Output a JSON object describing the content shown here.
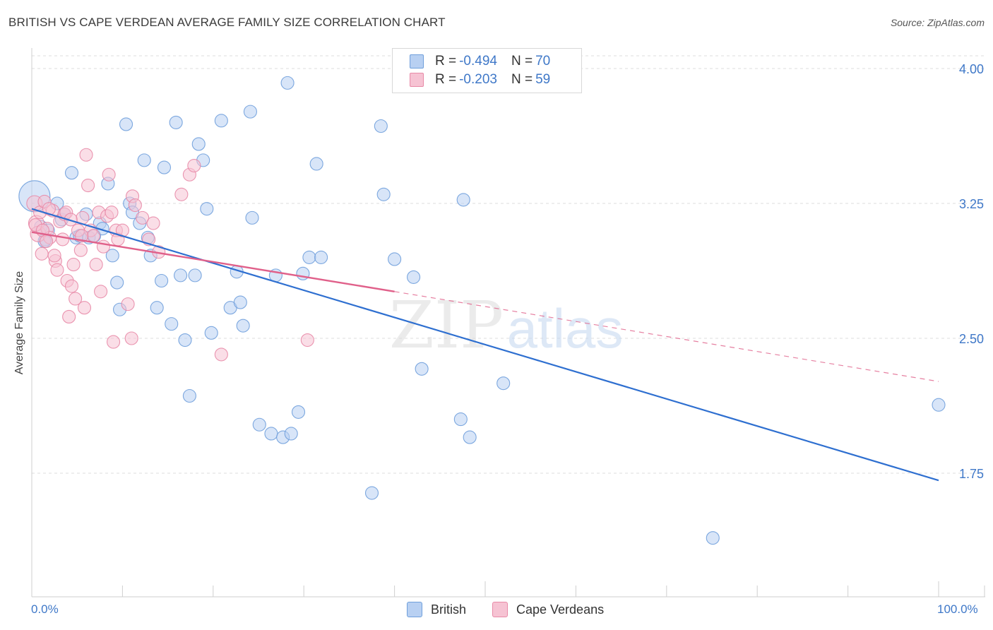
{
  "header": {
    "title": "BRITISH VS CAPE VERDEAN AVERAGE FAMILY SIZE CORRELATION CHART",
    "source": "Source: ZipAtlas.com"
  },
  "watermark": {
    "zip": "ZIP",
    "atlas": "atlas"
  },
  "colors": {
    "british_fill": "#b8d0f2",
    "british_stroke": "#6f9fdb",
    "british_line": "#2e6fd0",
    "cape_fill": "#f6c3d3",
    "cape_stroke": "#e88aa7",
    "cape_line": "#e0608a",
    "tick_text": "#3f78c8",
    "grid": "#dcdcdc"
  },
  "legend_top": {
    "rows": [
      {
        "r_label": "R = ",
        "r_value": "-0.494",
        "n_label": "N = ",
        "n_value": "70"
      },
      {
        "r_label": "R = ",
        "r_value": "-0.203",
        "n_label": "N = ",
        "n_value": "59"
      }
    ]
  },
  "legend_bottom": {
    "items": [
      "British",
      "Cape Verdeans"
    ]
  },
  "chart_data": {
    "type": "scatter",
    "title": "BRITISH VS CAPE VERDEAN AVERAGE FAMILY SIZE CORRELATION CHART",
    "xlabel": "",
    "ylabel": "Average Family Size",
    "xlim": [
      0,
      100
    ],
    "ylim": [
      1.0,
      4.12
    ],
    "x_tick_labels": [
      "0.0%",
      "100.0%"
    ],
    "y_ticks": [
      1.75,
      2.5,
      3.25,
      4.0
    ],
    "y_tick_labels": [
      "1.75",
      "2.50",
      "3.25",
      "4.00"
    ],
    "grid": true,
    "legend_position": "top-center",
    "series": [
      {
        "name": "British",
        "r": -0.494,
        "n": 70,
        "trend": {
          "x0": 0,
          "y0": 3.22,
          "x1": 100,
          "y1": 1.71
        },
        "points": [
          [
            0.3,
            3.29,
            22
          ],
          [
            1.0,
            3.12,
            9
          ],
          [
            1.5,
            3.05,
            9
          ],
          [
            1.8,
            3.1,
            9
          ],
          [
            2.8,
            3.25,
            9
          ],
          [
            3.3,
            3.16,
            9
          ],
          [
            3.6,
            3.19,
            9
          ],
          [
            4.4,
            3.42,
            9
          ],
          [
            4.9,
            3.06,
            9
          ],
          [
            5.3,
            3.07,
            9
          ],
          [
            6.0,
            3.19,
            9
          ],
          [
            6.3,
            3.06,
            9
          ],
          [
            6.9,
            3.07,
            9
          ],
          [
            7.5,
            3.14,
            9
          ],
          [
            7.8,
            3.11,
            9
          ],
          [
            8.4,
            3.36,
            9
          ],
          [
            8.9,
            2.96,
            9
          ],
          [
            9.4,
            2.81,
            9
          ],
          [
            9.7,
            2.66,
            9
          ],
          [
            10.4,
            3.69,
            9
          ],
          [
            10.8,
            3.25,
            9
          ],
          [
            11.1,
            3.2,
            9
          ],
          [
            11.9,
            3.14,
            9
          ],
          [
            12.4,
            3.49,
            9
          ],
          [
            12.8,
            3.06,
            9
          ],
          [
            13.1,
            2.96,
            9
          ],
          [
            13.8,
            2.67,
            9
          ],
          [
            14.3,
            2.82,
            9
          ],
          [
            14.6,
            3.45,
            9
          ],
          [
            15.4,
            2.58,
            9
          ],
          [
            15.9,
            3.7,
            9
          ],
          [
            16.4,
            2.85,
            9
          ],
          [
            16.9,
            2.49,
            9
          ],
          [
            17.4,
            2.18,
            9
          ],
          [
            18.0,
            2.85,
            9
          ],
          [
            18.4,
            3.58,
            9
          ],
          [
            18.9,
            3.49,
            9
          ],
          [
            19.3,
            3.22,
            9
          ],
          [
            19.8,
            2.53,
            9
          ],
          [
            20.9,
            3.71,
            9
          ],
          [
            21.9,
            2.67,
            9
          ],
          [
            22.6,
            2.87,
            9
          ],
          [
            23.0,
            2.7,
            9
          ],
          [
            23.3,
            2.57,
            9
          ],
          [
            24.1,
            3.76,
            9
          ],
          [
            24.3,
            3.17,
            9
          ],
          [
            25.1,
            2.02,
            9
          ],
          [
            26.4,
            1.97,
            9
          ],
          [
            26.9,
            2.85,
            9
          ],
          [
            27.7,
            1.95,
            9
          ],
          [
            28.2,
            3.92,
            9
          ],
          [
            28.6,
            1.97,
            9
          ],
          [
            29.4,
            2.09,
            9
          ],
          [
            29.9,
            2.86,
            9
          ],
          [
            30.6,
            2.95,
            9
          ],
          [
            31.4,
            3.47,
            9
          ],
          [
            31.9,
            2.95,
            9
          ],
          [
            37.5,
            1.64,
            9
          ],
          [
            38.5,
            3.68,
            9
          ],
          [
            38.8,
            3.3,
            9
          ],
          [
            40.0,
            2.94,
            9
          ],
          [
            42.1,
            2.84,
            9
          ],
          [
            43.0,
            2.33,
            9
          ],
          [
            47.3,
            2.05,
            9
          ],
          [
            47.6,
            3.27,
            9
          ],
          [
            48.3,
            1.95,
            9
          ],
          [
            52.0,
            2.25,
            9
          ],
          [
            75.1,
            1.39,
            9
          ],
          [
            100.0,
            2.13,
            9
          ],
          [
            1.4,
            3.04,
            9
          ]
        ]
      },
      {
        "name": "Cape Verdeans",
        "r": -0.203,
        "n": 59,
        "trend": {
          "x0": 0,
          "y0": 3.09,
          "x1": 40,
          "y1": 2.76
        },
        "trend_extension": {
          "x0": 40,
          "y0": 2.76,
          "x1": 100,
          "y1": 2.26
        },
        "points": [
          [
            0.3,
            3.25,
            11
          ],
          [
            0.5,
            3.14,
            11
          ],
          [
            0.7,
            3.08,
            11
          ],
          [
            0.9,
            3.2,
            9
          ],
          [
            1.1,
            2.97,
            9
          ],
          [
            1.4,
            3.26,
            9
          ],
          [
            1.7,
            3.11,
            9
          ],
          [
            2.0,
            3.06,
            9
          ],
          [
            2.3,
            3.21,
            9
          ],
          [
            2.6,
            2.93,
            9
          ],
          [
            2.8,
            2.88,
            9
          ],
          [
            3.1,
            3.15,
            9
          ],
          [
            3.4,
            3.05,
            9
          ],
          [
            3.6,
            3.19,
            9
          ],
          [
            3.9,
            2.82,
            9
          ],
          [
            4.1,
            2.62,
            9
          ],
          [
            4.4,
            2.79,
            9
          ],
          [
            4.6,
            2.91,
            9
          ],
          [
            4.8,
            2.72,
            9
          ],
          [
            5.1,
            3.1,
            9
          ],
          [
            5.4,
            2.99,
            9
          ],
          [
            5.6,
            3.17,
            9
          ],
          [
            5.8,
            2.67,
            9
          ],
          [
            6.0,
            3.52,
            9
          ],
          [
            6.2,
            3.35,
            9
          ],
          [
            6.5,
            3.1,
            9
          ],
          [
            6.8,
            3.07,
            9
          ],
          [
            7.1,
            2.91,
            9
          ],
          [
            7.4,
            3.2,
            9
          ],
          [
            7.6,
            2.76,
            9
          ],
          [
            7.9,
            3.01,
            9
          ],
          [
            8.3,
            3.18,
            9
          ],
          [
            8.5,
            3.41,
            9
          ],
          [
            8.8,
            3.2,
            9
          ],
          [
            9.0,
            2.48,
            9
          ],
          [
            9.3,
            3.1,
            9
          ],
          [
            9.5,
            3.05,
            9
          ],
          [
            10.0,
            3.1,
            9
          ],
          [
            10.6,
            2.69,
            9
          ],
          [
            11.1,
            3.29,
            9
          ],
          [
            11.4,
            3.24,
            9
          ],
          [
            11.0,
            2.5,
            9
          ],
          [
            12.2,
            3.17,
            9
          ],
          [
            12.9,
            3.05,
            9
          ],
          [
            13.4,
            3.14,
            9
          ],
          [
            14.0,
            2.98,
            9
          ],
          [
            16.5,
            3.3,
            9
          ],
          [
            17.4,
            3.41,
            9
          ],
          [
            17.9,
            3.46,
            9
          ],
          [
            20.9,
            2.41,
            9
          ],
          [
            30.4,
            2.49,
            9
          ],
          [
            0.4,
            3.13,
            9
          ],
          [
            1.2,
            3.1,
            9
          ],
          [
            1.9,
            3.22,
            9
          ],
          [
            2.5,
            2.96,
            9
          ],
          [
            3.8,
            3.2,
            9
          ],
          [
            4.3,
            3.16,
            9
          ],
          [
            5.5,
            3.07,
            9
          ],
          [
            1.6,
            3.04,
            9
          ]
        ]
      }
    ]
  }
}
